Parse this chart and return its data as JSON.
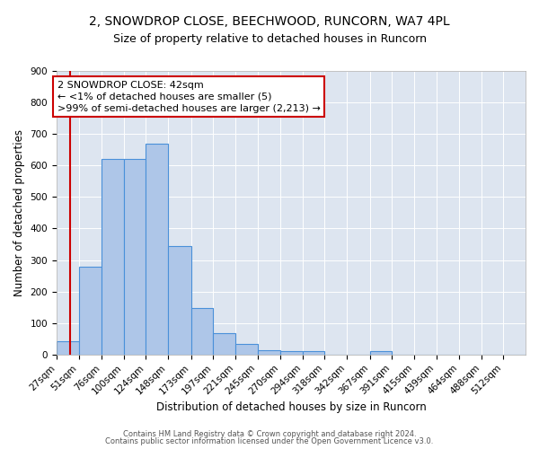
{
  "title1": "2, SNOWDROP CLOSE, BEECHWOOD, RUNCORN, WA7 4PL",
  "title2": "Size of property relative to detached houses in Runcorn",
  "xlabel": "Distribution of detached houses by size in Runcorn",
  "ylabel": "Number of detached properties",
  "bin_labels": [
    "27sqm",
    "51sqm",
    "76sqm",
    "100sqm",
    "124sqm",
    "148sqm",
    "173sqm",
    "197sqm",
    "221sqm",
    "245sqm",
    "270sqm",
    "294sqm",
    "318sqm",
    "342sqm",
    "367sqm",
    "391sqm",
    "415sqm",
    "439sqm",
    "464sqm",
    "488sqm",
    "512sqm"
  ],
  "bin_edges": [
    27,
    51,
    76,
    100,
    124,
    148,
    173,
    197,
    221,
    245,
    270,
    294,
    318,
    342,
    367,
    391,
    415,
    439,
    464,
    488,
    512
  ],
  "bar_values": [
    42,
    280,
    620,
    620,
    670,
    345,
    148,
    68,
    35,
    15,
    12,
    12,
    0,
    0,
    10,
    0,
    0,
    0,
    0,
    0,
    0
  ],
  "bar_color": "#aec6e8",
  "bar_edge_color": "#4a90d9",
  "bar_edge_width": 0.8,
  "property_size": 42,
  "property_line_color": "#cc0000",
  "annotation_line1": "2 SNOWDROP CLOSE: 42sqm",
  "annotation_line2": "← <1% of detached houses are smaller (5)",
  "annotation_line3": ">99% of semi-detached houses are larger (2,213) →",
  "annotation_box_color": "#ffffff",
  "annotation_box_edge_color": "#cc0000",
  "ylim": [
    0,
    900
  ],
  "yticks": [
    0,
    100,
    200,
    300,
    400,
    500,
    600,
    700,
    800,
    900
  ],
  "background_color": "#dde5f0",
  "footer1": "Contains HM Land Registry data © Crown copyright and database right 2024.",
  "footer2": "Contains public sector information licensed under the Open Government Licence v3.0.",
  "title1_fontsize": 10,
  "title2_fontsize": 9,
  "xlabel_fontsize": 8.5,
  "ylabel_fontsize": 8.5,
  "tick_fontsize": 7.5,
  "annotation_fontsize": 8,
  "footer_fontsize": 6
}
